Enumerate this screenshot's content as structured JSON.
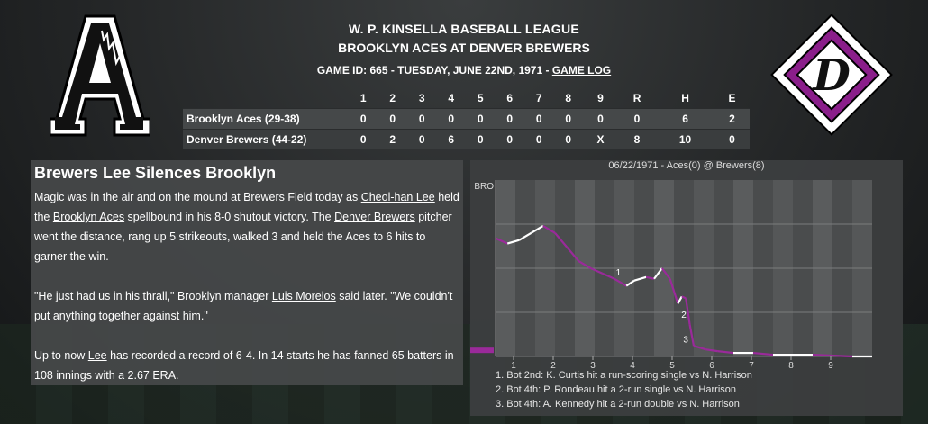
{
  "header": {
    "league": "W. P. KINSELLA BASEBALL LEAGUE",
    "matchup": "BROOKLYN ACES AT DENVER BREWERS",
    "game_info": "GAME ID: 665 - TUESDAY, JUNE 22ND, 1971 - ",
    "game_log_link": "GAME LOG"
  },
  "linescore": {
    "columns": [
      "1",
      "2",
      "3",
      "4",
      "5",
      "6",
      "7",
      "8",
      "9",
      "R",
      "H",
      "E"
    ],
    "teams": [
      {
        "name": "Brooklyn Aces (29-38)",
        "scores": [
          "0",
          "0",
          "0",
          "0",
          "0",
          "0",
          "0",
          "0",
          "0",
          "0",
          "6",
          "2"
        ]
      },
      {
        "name": "Denver Brewers (44-22)",
        "scores": [
          "0",
          "2",
          "0",
          "6",
          "0",
          "0",
          "0",
          "0",
          "X",
          "8",
          "10",
          "0"
        ]
      }
    ]
  },
  "story": {
    "headline": "Brewers Lee Silences Brooklyn",
    "p1_a": "Magic was in the air and on the mound at Brewers Field today as ",
    "p1_link1": "Cheol-han Lee",
    "p1_b": " held the ",
    "p1_link2": "Brooklyn Aces",
    "p1_c": " spellbound in his 8-0 shutout victory. The ",
    "p1_link3": "Denver Brewers",
    "p1_d": " pitcher went the distance, rang up 5 strikeouts, walked 3 and held the Aces to 6 hits to garner the win.",
    "p2_a": "\"He just had us in his thrall,\" Brooklyn manager ",
    "p2_link": "Luis Morelos",
    "p2_b": " said later. \"We couldn't put anything together against him.\"",
    "p3_a": "Up to now ",
    "p3_link": "Lee",
    "p3_b": " has recorded a record of 6-4. In 14 starts he has fanned 65 batters in 108 innings with a 2.67 ERA."
  },
  "chart_data": {
    "type": "line",
    "title": "06/22/1971 - Aces(0) @ Brewers(8)",
    "y_top_label": "BRO",
    "x_ticks": [
      "1",
      "2",
      "3",
      "4",
      "5",
      "6",
      "7",
      "8",
      "9"
    ],
    "ylim": [
      0,
      100
    ],
    "colors": {
      "aces": "#ffffff",
      "brewers": "#9a2a9a"
    },
    "annotations": [
      {
        "label": "1",
        "inning": 3.1,
        "value": 46
      },
      {
        "label": "2",
        "inning": 4.75,
        "value": 22
      },
      {
        "label": "3",
        "inning": 4.8,
        "value": 8
      }
    ],
    "series": [
      {
        "inning": 0.0,
        "value": 67
      },
      {
        "inning": 0.3,
        "value": 64
      },
      {
        "inning": 0.6,
        "value": 66
      },
      {
        "inning": 0.9,
        "value": 70
      },
      {
        "inning": 1.2,
        "value": 74
      },
      {
        "inning": 1.5,
        "value": 70
      },
      {
        "inning": 1.8,
        "value": 62
      },
      {
        "inning": 2.1,
        "value": 54
      },
      {
        "inning": 2.4,
        "value": 50
      },
      {
        "inning": 2.7,
        "value": 47
      },
      {
        "inning": 3.0,
        "value": 44
      },
      {
        "inning": 3.3,
        "value": 40
      },
      {
        "inning": 3.5,
        "value": 43
      },
      {
        "inning": 3.8,
        "value": 45
      },
      {
        "inning": 4.0,
        "value": 44
      },
      {
        "inning": 4.2,
        "value": 50
      },
      {
        "inning": 4.4,
        "value": 44
      },
      {
        "inning": 4.6,
        "value": 30
      },
      {
        "inning": 4.7,
        "value": 34
      },
      {
        "inning": 4.8,
        "value": 33
      },
      {
        "inning": 4.9,
        "value": 18
      },
      {
        "inning": 5.0,
        "value": 6
      },
      {
        "inning": 5.3,
        "value": 4
      },
      {
        "inning": 5.6,
        "value": 3
      },
      {
        "inning": 6.0,
        "value": 2
      },
      {
        "inning": 6.5,
        "value": 2
      },
      {
        "inning": 7.0,
        "value": 1
      },
      {
        "inning": 8.0,
        "value": 1
      },
      {
        "inning": 9.0,
        "value": 0
      },
      {
        "inning": 9.5,
        "value": 0
      }
    ],
    "notes": [
      "1. Bot 2nd: K. Curtis hit a run-scoring single vs N. Harrison",
      "2. Bot 4th: P. Rondeau hit a 2-run single vs N. Harrison",
      "3. Bot 4th: A. Kennedy hit a 2-run double vs N. Harrison"
    ]
  }
}
